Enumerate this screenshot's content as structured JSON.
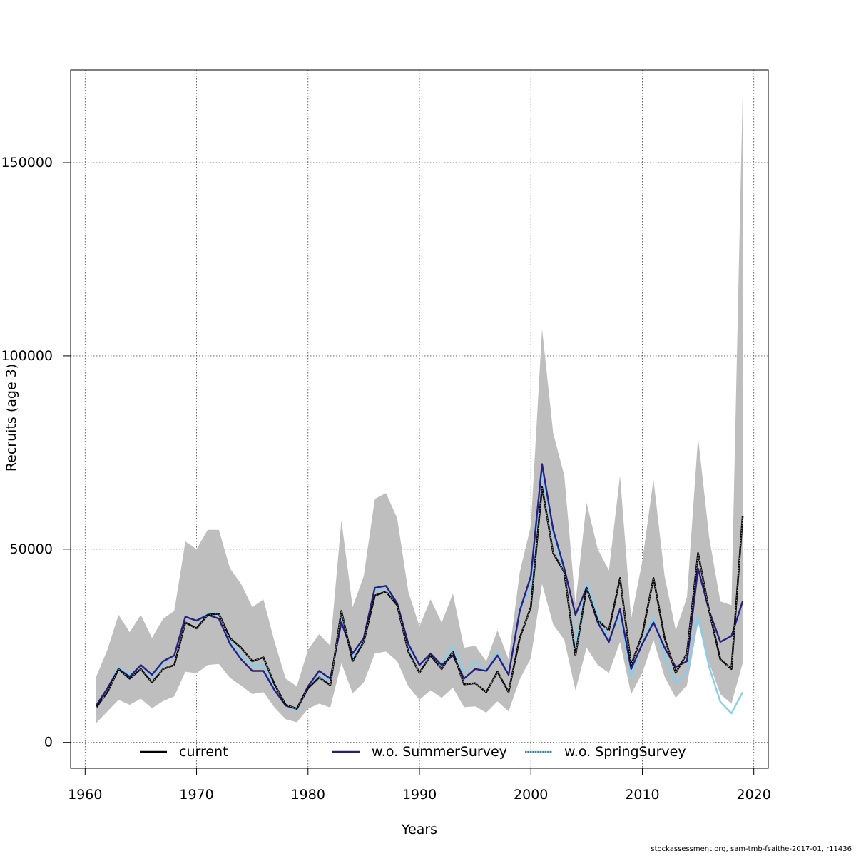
{
  "chart_data": {
    "type": "line",
    "xlabel": "Years",
    "ylabel": "Recruits (age 3)",
    "xlim": [
      1958.7,
      2021.3
    ],
    "ylim": [
      -6700,
      174000
    ],
    "xticks": [
      1960,
      1970,
      1980,
      1990,
      2000,
      2010,
      2020
    ],
    "yticks": [
      0,
      50000,
      100000,
      150000
    ],
    "ytick_labels": [
      "0",
      "50000",
      "100000",
      "150000"
    ],
    "grid": true,
    "legend_position": "bottom",
    "colors": {
      "band": "#bebebe",
      "current": "#000000",
      "summer": "#2a1f80",
      "spring": "#87ceeb"
    },
    "x": [
      1961,
      1962,
      1963,
      1964,
      1965,
      1966,
      1967,
      1968,
      1969,
      1970,
      1971,
      1972,
      1973,
      1974,
      1975,
      1976,
      1977,
      1978,
      1979,
      1980,
      1981,
      1982,
      1983,
      1984,
      1985,
      1986,
      1987,
      1988,
      1989,
      1990,
      1991,
      1992,
      1993,
      1994,
      1995,
      1996,
      1997,
      1998,
      1999,
      2000,
      2001,
      2002,
      2003,
      2004,
      2005,
      2006,
      2007,
      2008,
      2009,
      2010,
      2011,
      2012,
      2013,
      2014,
      2015,
      2016,
      2017,
      2018,
      2019
    ],
    "confidence_band": {
      "upper": [
        17000,
        24000,
        33000,
        28500,
        33000,
        27000,
        32000,
        34000,
        52000,
        50000,
        55000,
        55000,
        45000,
        41000,
        35000,
        37000,
        26000,
        16500,
        14500,
        24000,
        28000,
        25000,
        57500,
        35000,
        43000,
        63000,
        64500,
        58000,
        39000,
        30000,
        37000,
        31000,
        38500,
        24500,
        25000,
        21000,
        29000,
        21500,
        44000,
        56000,
        107000,
        80000,
        69000,
        36000,
        62000,
        50000,
        44500,
        69000,
        32000,
        47000,
        68000,
        43000,
        29000,
        37500,
        79000,
        53000,
        36500,
        35500,
        168000
      ],
      "lower": [
        5000,
        8000,
        11000,
        9700,
        11300,
        8800,
        10700,
        11900,
        18300,
        17900,
        20000,
        20300,
        16700,
        14700,
        12500,
        13000,
        9000,
        6000,
        5200,
        8700,
        10000,
        9000,
        20500,
        12700,
        15500,
        23000,
        23500,
        21000,
        14500,
        11000,
        13500,
        11500,
        14200,
        9100,
        9300,
        7700,
        10600,
        8000,
        16300,
        21800,
        41000,
        30500,
        26500,
        13500,
        24500,
        20000,
        18000,
        26000,
        12500,
        18000,
        26500,
        17000,
        11500,
        14800,
        31000,
        20500,
        12500,
        10000,
        20500
      ]
    },
    "series": [
      {
        "name": "current",
        "values": [
          9000,
          13000,
          19000,
          16500,
          19000,
          15500,
          19000,
          20000,
          31000,
          29500,
          33000,
          33300,
          27000,
          24500,
          21000,
          22000,
          15000,
          9700,
          8700,
          14000,
          16800,
          14800,
          34000,
          21000,
          26000,
          38000,
          39000,
          35500,
          23500,
          18000,
          22500,
          19000,
          23500,
          15000,
          15300,
          13000,
          18300,
          13000,
          27000,
          35000,
          66000,
          49000,
          44000,
          22500,
          40000,
          31500,
          29000,
          42500,
          20000,
          28000,
          42500,
          27000,
          18000,
          23000,
          49000,
          34000,
          21500,
          19000,
          58500
        ]
      },
      {
        "name": "w.o. SummerSurvey",
        "values": [
          9500,
          14000,
          19000,
          17000,
          20000,
          17500,
          21000,
          22500,
          32500,
          31500,
          33000,
          32000,
          25500,
          21500,
          18500,
          18500,
          13500,
          9500,
          8700,
          14500,
          18500,
          16500,
          31000,
          23000,
          27000,
          40000,
          40500,
          36000,
          25500,
          20000,
          23000,
          20000,
          22500,
          16500,
          19000,
          18500,
          22500,
          17500,
          34000,
          43000,
          72000,
          55000,
          45000,
          33000,
          40000,
          31000,
          26000,
          34500,
          19000,
          25500,
          31000,
          24500,
          19500,
          21000,
          45000,
          34000,
          26000,
          27500,
          36500
        ]
      },
      {
        "name": "w.o. SpringSurvey",
        "values": [
          9500,
          14000,
          19500,
          17500,
          20000,
          17000,
          20500,
          22500,
          32500,
          31500,
          33500,
          33500,
          26500,
          22500,
          20000,
          20000,
          13800,
          9500,
          8200,
          14000,
          17500,
          16000,
          32500,
          22000,
          26500,
          39500,
          40000,
          36000,
          24500,
          20000,
          22500,
          20500,
          25000,
          18000,
          21000,
          18500,
          23500,
          17500,
          35000,
          40000,
          70000,
          54000,
          43000,
          25000,
          41500,
          33000,
          26500,
          33000,
          17000,
          26000,
          32500,
          22000,
          15500,
          18000,
          32500,
          19500,
          10500,
          7500,
          13000
        ]
      }
    ]
  },
  "footer_text": "stockassessment.org, sam-tmb-fsaithe-2017-01, r11436"
}
